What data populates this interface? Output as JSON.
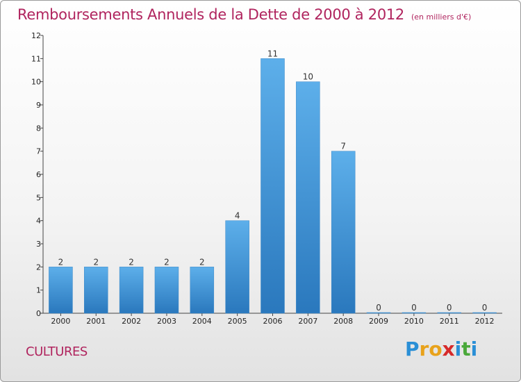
{
  "header": {
    "title": "Remboursements Annuels de la Dette de 2000 à 2012",
    "unit": "(en milliers d'€)"
  },
  "footer": {
    "commune": "CULTURES",
    "logo_letters": [
      "P",
      "r",
      "o",
      "x",
      "i",
      "t",
      "i"
    ],
    "logo_colors": [
      "#2a8fd6",
      "#e8a21b",
      "#e8a21b",
      "#d62a2a",
      "#2a8fd6",
      "#4aa83a",
      "#2a8fd6"
    ]
  },
  "chart_data": {
    "type": "bar",
    "categories": [
      "2000",
      "2001",
      "2002",
      "2003",
      "2004",
      "2005",
      "2006",
      "2007",
      "2008",
      "2009",
      "2010",
      "2011",
      "2012"
    ],
    "values": [
      2,
      2,
      2,
      2,
      2,
      4,
      11,
      10,
      7,
      0,
      0,
      0,
      0
    ],
    "ylim": [
      0,
      12
    ],
    "yticks": [
      0,
      1,
      2,
      3,
      4,
      5,
      6,
      7,
      8,
      9,
      10,
      11,
      12
    ],
    "bar_color_top": "#5dafea",
    "bar_color_bottom": "#2a78bd",
    "grid": false,
    "data_labels": true
  }
}
